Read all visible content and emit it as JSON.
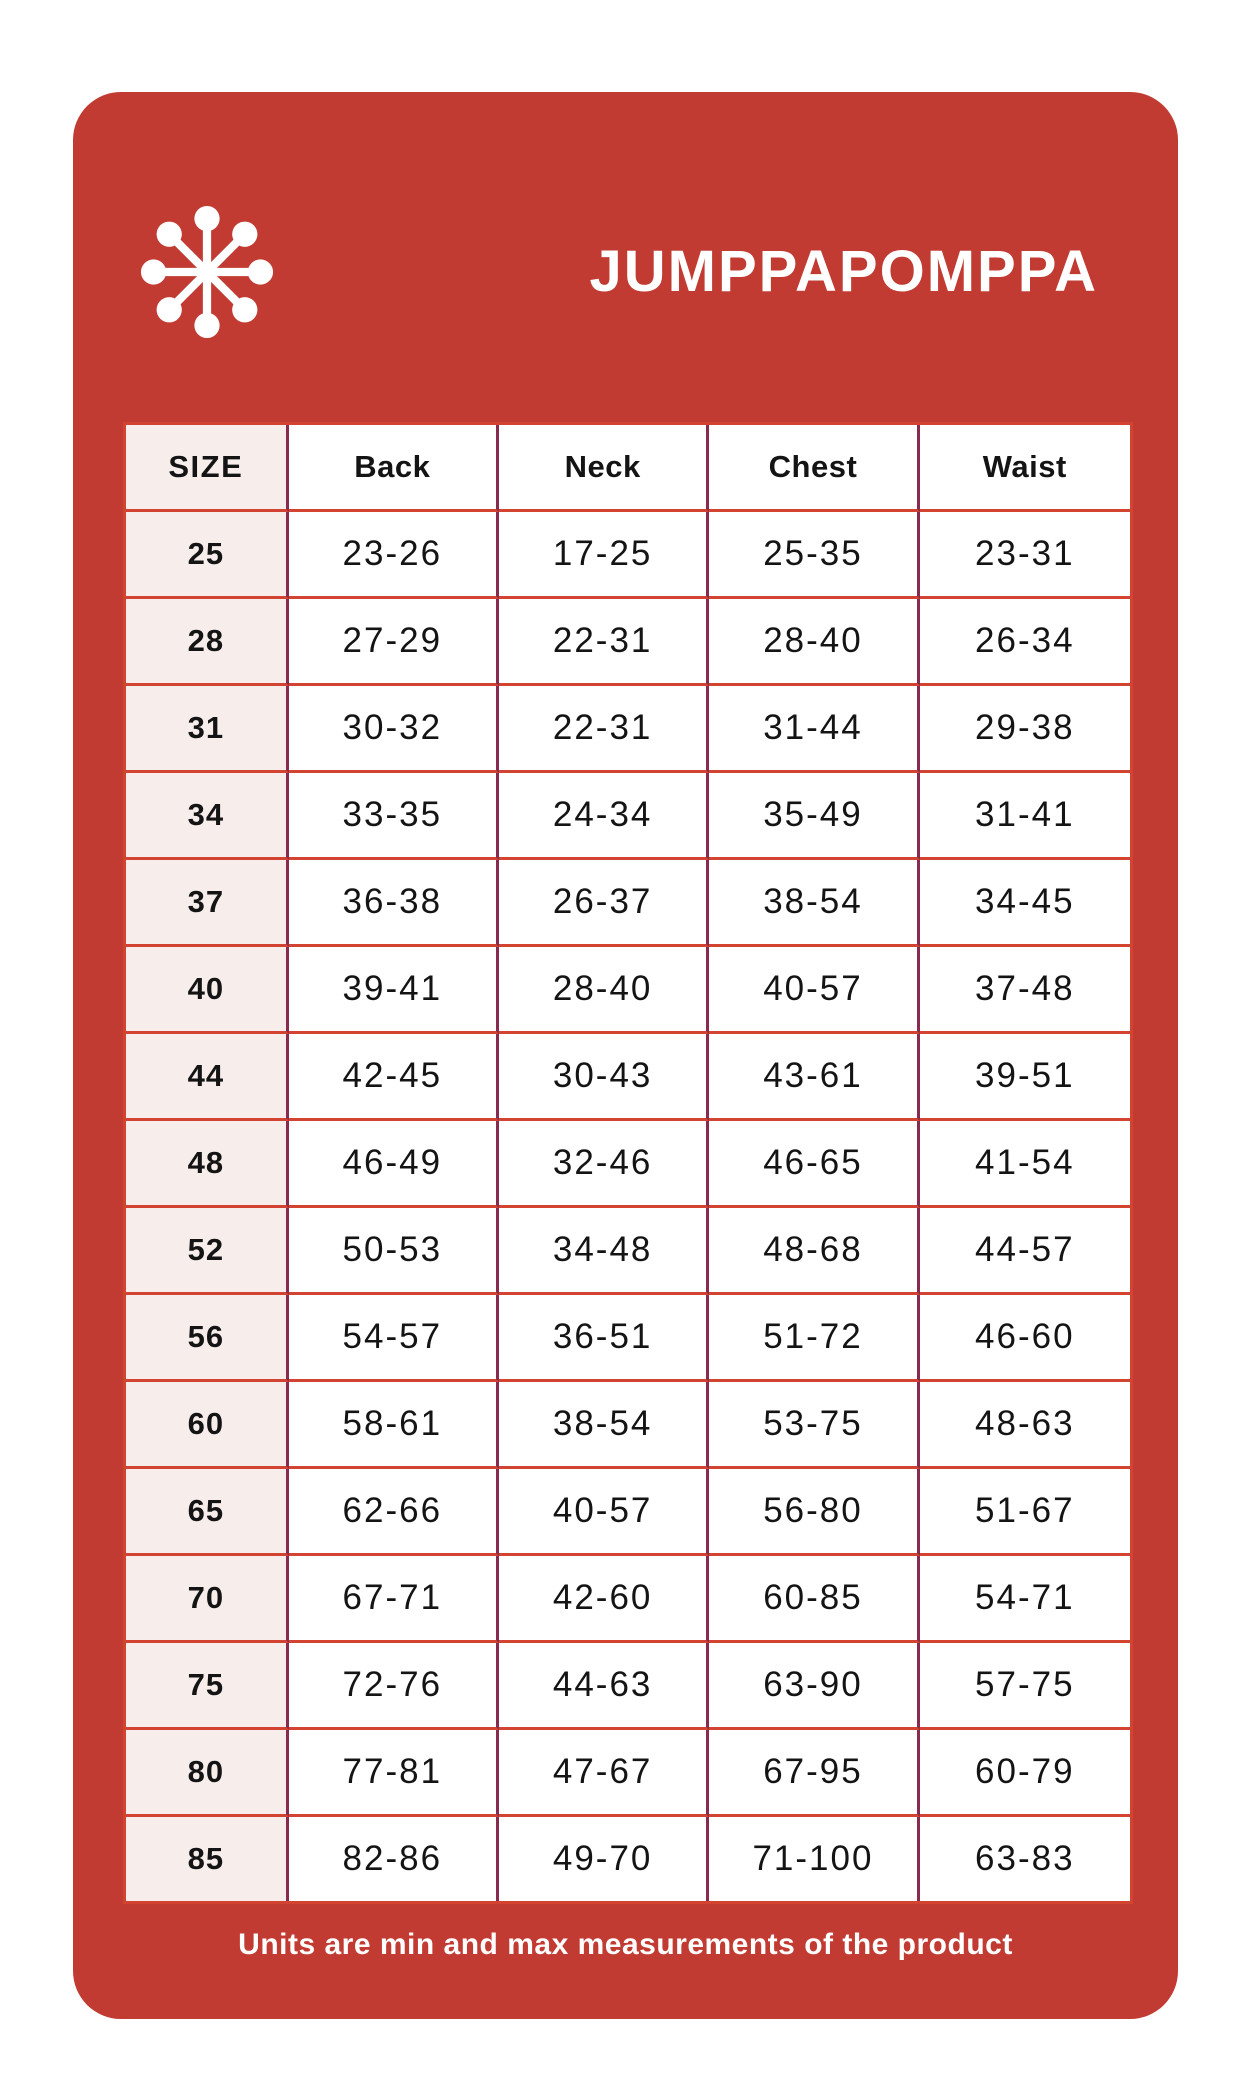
{
  "brand": {
    "title": "JUMPPAPOMPPA",
    "logo_icon": "snowflake-asterisk-icon"
  },
  "table": {
    "columns": [
      "SIZE",
      "Back",
      "Neck",
      "Chest",
      "Waist"
    ],
    "rows": [
      [
        "25",
        "23-26",
        "17-25",
        "25-35",
        "23-31"
      ],
      [
        "28",
        "27-29",
        "22-31",
        "28-40",
        "26-34"
      ],
      [
        "31",
        "30-32",
        "22-31",
        "31-44",
        "29-38"
      ],
      [
        "34",
        "33-35",
        "24-34",
        "35-49",
        "31-41"
      ],
      [
        "37",
        "36-38",
        "26-37",
        "38-54",
        "34-45"
      ],
      [
        "40",
        "39-41",
        "28-40",
        "40-57",
        "37-48"
      ],
      [
        "44",
        "42-45",
        "30-43",
        "43-61",
        "39-51"
      ],
      [
        "48",
        "46-49",
        "32-46",
        "46-65",
        "41-54"
      ],
      [
        "52",
        "50-53",
        "34-48",
        "48-68",
        "44-57"
      ],
      [
        "56",
        "54-57",
        "36-51",
        "51-72",
        "46-60"
      ],
      [
        "60",
        "58-61",
        "38-54",
        "53-75",
        "48-63"
      ],
      [
        "65",
        "62-66",
        "40-57",
        "56-80",
        "51-67"
      ],
      [
        "70",
        "67-71",
        "42-60",
        "60-85",
        "54-71"
      ],
      [
        "75",
        "72-76",
        "44-63",
        "63-90",
        "57-75"
      ],
      [
        "80",
        "77-81",
        "47-67",
        "67-95",
        "60-79"
      ],
      [
        "85",
        "82-86",
        "49-70",
        "71-100",
        "63-83"
      ]
    ]
  },
  "footer": {
    "note": "Units are min and max measurements of the product"
  },
  "colors": {
    "card_background": "#c23b32",
    "row_divider": "#d24331",
    "column_divider": "#872b4f",
    "size_column_background": "#f7eeec",
    "cell_background": "#ffffff",
    "table_text": "#141414",
    "title_text": "#ffffff"
  }
}
